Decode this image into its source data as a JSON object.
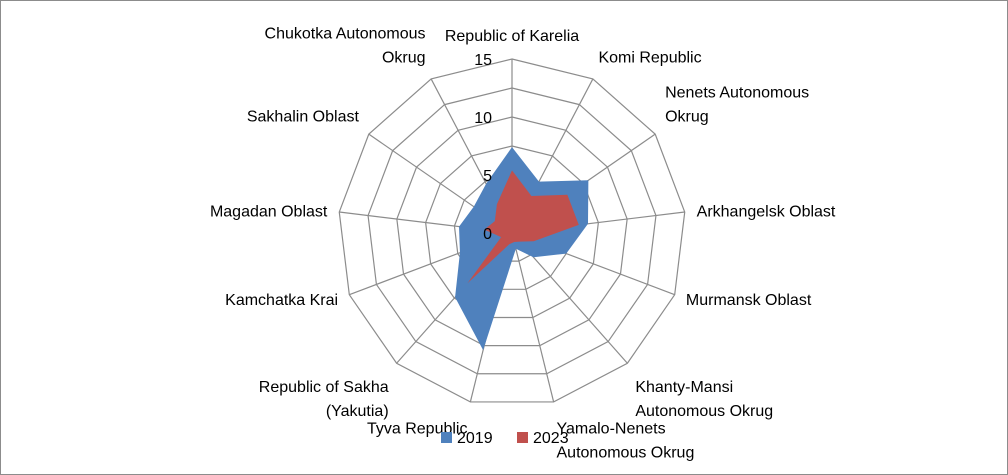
{
  "chart_data": {
    "type": "radar",
    "title": "",
    "categories": [
      [
        "Republic of Karelia"
      ],
      [
        "Komi Republic"
      ],
      [
        "Nenets Autonomous",
        "Okrug"
      ],
      [
        "Arkhangelsk Oblast"
      ],
      [
        "Murmansk Oblast"
      ],
      [
        "Khanty-Mansi",
        "Autonomous Okrug"
      ],
      [
        "Yamalo-Nenets",
        "Autonomous Okrug"
      ],
      [
        "Tyva Republic"
      ],
      [
        "Republic of Sakha",
        "(Yakutia)"
      ],
      [
        "Kamchatka Krai"
      ],
      [
        "Magadan Oblast"
      ],
      [
        "Sakhalin Oblast"
      ],
      [
        "Chukotka Autonomous",
        "Okrug"
      ]
    ],
    "radial_axis": {
      "min": 0,
      "max": 15,
      "ticks": [
        "0",
        "5",
        "10",
        "15"
      ]
    },
    "grid": true,
    "legend_position": "bottom",
    "series": [
      {
        "name": "2019",
        "color": "#4f81bd",
        "values": [
          7.4,
          5.0,
          8.0,
          6.6,
          5.0,
          2.8,
          1.4,
          10.4,
          7.4,
          4.8,
          4.6,
          4.0,
          4.8
        ]
      },
      {
        "name": "2023",
        "color": "#c0504d",
        "values": [
          5.4,
          3.6,
          5.8,
          5.8,
          2.0,
          1.0,
          0.8,
          1.0,
          5.8,
          1.0,
          2.4,
          1.8,
          2.8
        ]
      }
    ]
  }
}
